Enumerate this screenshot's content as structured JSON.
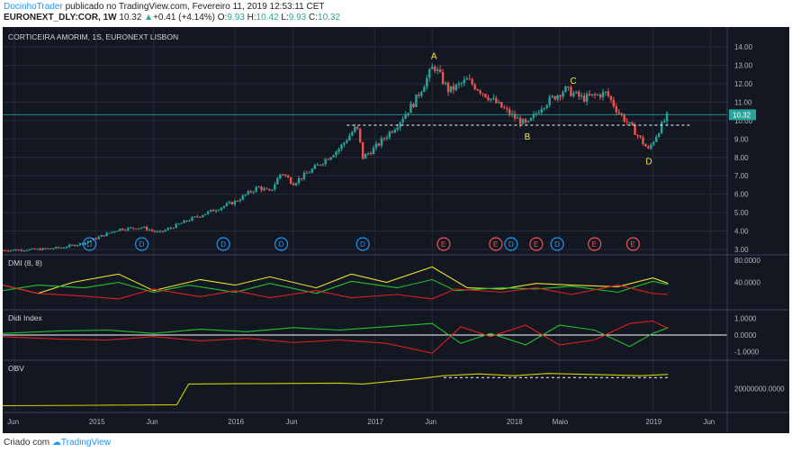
{
  "header": {
    "author": "DocinhoTrader",
    "published_text": "publicado no TradingView.com, Fevereiro 11, 2019 12:53:11 CET",
    "symbol": "EURONEXT_DLY:COR, 1W",
    "price": "10.32",
    "change": "+0.41 (+4.14%)",
    "o_label": "O:",
    "o_value": "9.93",
    "h_label": "H:",
    "h_value": "10.42",
    "l_label": "L:",
    "l_value": "9.93",
    "c_label": "C:",
    "c_value": "10.32"
  },
  "footer": {
    "created_with": "Criado com",
    "brand": "TradingView"
  },
  "colors": {
    "background": "#131722",
    "up": "#26a69a",
    "down": "#ef5350",
    "dividend": "#2196f3",
    "earnings": "#ef5350",
    "annotation": "#f5e642",
    "plus_di": "#22c22e",
    "minus_di": "#e01e1e",
    "adx": "#e8e32c",
    "obv": "#d4d000"
  },
  "chart_data": [
    {
      "type": "candlestick",
      "title": "CORTICEIRA AMORIM, 1S, EURONEXT LISBON",
      "ylim": [
        2.9,
        14.5
      ],
      "y_ticks": [
        "14.00",
        "13.00",
        "12.00",
        "11.00",
        "10.00",
        "9.00",
        "8.00",
        "7.00",
        "6.00",
        "5.00",
        "4.00",
        "3.00"
      ],
      "x_ticks": [
        {
          "date": "2014-06-01",
          "label": "Jun"
        },
        {
          "date": "2015-01-01",
          "label": "2015"
        },
        {
          "date": "2015-06-01",
          "label": "Jun"
        },
        {
          "date": "2016-01-01",
          "label": "2016"
        },
        {
          "date": "2016-06-01",
          "label": "Jun"
        },
        {
          "date": "2017-01-01",
          "label": "2017"
        },
        {
          "date": "2017-06-01",
          "label": "Jun"
        },
        {
          "date": "2018-01-01",
          "label": "2018"
        },
        {
          "date": "2018-05-01",
          "label": "Maio"
        },
        {
          "date": "2019-01-01",
          "label": "2019"
        },
        {
          "date": "2019-06-01",
          "label": "Jun"
        }
      ],
      "x_range": [
        "2014-05-01",
        "2019-07-15"
      ],
      "price_line": 10.32,
      "price_label": "10.32",
      "support_level": 9.75,
      "close_path": [
        [
          "2014-05-01",
          2.95
        ],
        [
          "2014-08-01",
          3.0
        ],
        [
          "2014-10-01",
          3.1
        ],
        [
          "2014-12-01",
          3.35
        ],
        [
          "2015-03-01",
          4.1
        ],
        [
          "2015-05-01",
          4.2
        ],
        [
          "2015-06-15",
          3.9
        ],
        [
          "2015-09-01",
          4.6
        ],
        [
          "2015-11-01",
          5.1
        ],
        [
          "2016-01-01",
          5.6
        ],
        [
          "2016-03-01",
          6.4
        ],
        [
          "2016-04-01",
          6.1
        ],
        [
          "2016-05-01",
          7.2
        ],
        [
          "2016-06-01",
          6.6
        ],
        [
          "2016-08-01",
          7.5
        ],
        [
          "2016-10-01",
          8.5
        ],
        [
          "2016-11-15",
          9.7
        ],
        [
          "2016-12-01",
          8.0
        ],
        [
          "2017-01-01",
          8.5
        ],
        [
          "2017-03-01",
          9.8
        ],
        [
          "2017-04-15",
          11.0
        ],
        [
          "2017-06-05",
          13.0
        ],
        [
          "2017-07-15",
          11.6
        ],
        [
          "2017-09-01",
          12.2
        ],
        [
          "2017-11-01",
          11.2
        ],
        [
          "2018-01-01",
          10.2
        ],
        [
          "2018-02-05",
          9.75
        ],
        [
          "2018-03-15",
          10.8
        ],
        [
          "2018-05-15",
          11.7
        ],
        [
          "2018-07-01",
          11.2
        ],
        [
          "2018-09-01",
          11.5
        ],
        [
          "2018-10-01",
          10.5
        ],
        [
          "2018-11-15",
          9.4
        ],
        [
          "2018-12-20",
          8.4
        ],
        [
          "2019-01-20",
          9.6
        ],
        [
          "2019-02-10",
          10.32
        ]
      ],
      "annotations": [
        {
          "label": "A",
          "date": "2017-06-05",
          "value": 13.0,
          "pos": "above"
        },
        {
          "label": "B",
          "date": "2018-02-05",
          "value": 9.75,
          "pos": "below"
        },
        {
          "label": "C",
          "date": "2018-06-05",
          "value": 11.65,
          "pos": "above"
        },
        {
          "label": "D",
          "date": "2018-12-20",
          "value": 8.4,
          "pos": "below"
        }
      ],
      "events": [
        {
          "type": "D",
          "date": "2014-12-15"
        },
        {
          "type": "D",
          "date": "2015-05-01"
        },
        {
          "type": "D",
          "date": "2015-12-01"
        },
        {
          "type": "D",
          "date": "2016-05-01"
        },
        {
          "type": "D",
          "date": "2016-12-01"
        },
        {
          "type": "E",
          "date": "2017-07-01"
        },
        {
          "type": "E",
          "date": "2017-11-15"
        },
        {
          "type": "D",
          "date": "2017-12-25"
        },
        {
          "type": "E",
          "date": "2018-03-01"
        },
        {
          "type": "D",
          "date": "2018-04-25"
        },
        {
          "type": "E",
          "date": "2018-08-01"
        },
        {
          "type": "E",
          "date": "2018-11-10"
        }
      ]
    },
    {
      "type": "line",
      "title": "DMI (8, 8)",
      "ylim": [
        0,
        80
      ],
      "y_ticks": [
        "80.0000",
        "40.0000"
      ],
      "series": [
        {
          "color": "#e8e32c",
          "points": [
            [
              "2014-05-01",
              35
            ],
            [
              "2014-08-01",
              20
            ],
            [
              "2014-11-01",
              40
            ],
            [
              "2015-03-01",
              55
            ],
            [
              "2015-06-01",
              25
            ],
            [
              "2015-10-01",
              45
            ],
            [
              "2016-01-01",
              35
            ],
            [
              "2016-04-01",
              50
            ],
            [
              "2016-08-01",
              30
            ],
            [
              "2016-11-01",
              55
            ],
            [
              "2017-02-01",
              40
            ],
            [
              "2017-06-01",
              68
            ],
            [
              "2017-09-01",
              30
            ],
            [
              "2017-12-01",
              28
            ],
            [
              "2018-03-01",
              38
            ],
            [
              "2018-06-01",
              35
            ],
            [
              "2018-10-01",
              32
            ],
            [
              "2019-01-01",
              48
            ],
            [
              "2019-02-10",
              38
            ]
          ]
        },
        {
          "color": "#22c22e",
          "points": [
            [
              "2014-05-01",
              25
            ],
            [
              "2014-08-01",
              35
            ],
            [
              "2014-12-01",
              30
            ],
            [
              "2015-03-01",
              40
            ],
            [
              "2015-06-01",
              22
            ],
            [
              "2015-09-01",
              35
            ],
            [
              "2016-01-01",
              22
            ],
            [
              "2016-04-01",
              38
            ],
            [
              "2016-08-01",
              20
            ],
            [
              "2016-11-01",
              42
            ],
            [
              "2017-03-01",
              30
            ],
            [
              "2017-06-01",
              45
            ],
            [
              "2017-08-01",
              25
            ],
            [
              "2017-12-01",
              30
            ],
            [
              "2018-03-01",
              28
            ],
            [
              "2018-06-01",
              33
            ],
            [
              "2018-10-01",
              22
            ],
            [
              "2019-01-01",
              42
            ],
            [
              "2019-02-10",
              36
            ]
          ]
        },
        {
          "color": "#e01e1e",
          "points": [
            [
              "2014-05-01",
              35
            ],
            [
              "2014-08-01",
              20
            ],
            [
              "2014-12-01",
              15
            ],
            [
              "2015-03-01",
              10
            ],
            [
              "2015-06-01",
              28
            ],
            [
              "2015-10-01",
              14
            ],
            [
              "2016-01-01",
              25
            ],
            [
              "2016-04-01",
              12
            ],
            [
              "2016-08-01",
              25
            ],
            [
              "2016-11-01",
              12
            ],
            [
              "2017-03-01",
              18
            ],
            [
              "2017-06-01",
              10
            ],
            [
              "2017-08-01",
              28
            ],
            [
              "2017-12-01",
              22
            ],
            [
              "2018-03-01",
              30
            ],
            [
              "2018-06-01",
              18
            ],
            [
              "2018-10-01",
              35
            ],
            [
              "2019-01-01",
              20
            ],
            [
              "2019-02-10",
              18
            ]
          ]
        }
      ]
    },
    {
      "type": "line",
      "title": "Didi Index",
      "ylim": [
        -1.2,
        1.2
      ],
      "y_ticks": [
        "1.0000",
        "0.0000",
        "-1.0000"
      ],
      "series": [
        {
          "color": "#22c22e",
          "points": [
            [
              "2014-05-01",
              0.1
            ],
            [
              "2014-10-01",
              0.25
            ],
            [
              "2015-02-01",
              0.3
            ],
            [
              "2015-06-01",
              0.1
            ],
            [
              "2015-10-01",
              0.35
            ],
            [
              "2016-02-01",
              0.2
            ],
            [
              "2016-06-01",
              0.45
            ],
            [
              "2016-10-01",
              0.3
            ],
            [
              "2017-02-01",
              0.5
            ],
            [
              "2017-06-01",
              0.7
            ],
            [
              "2017-08-15",
              -0.5
            ],
            [
              "2017-11-01",
              0.1
            ],
            [
              "2018-02-01",
              -0.6
            ],
            [
              "2018-05-01",
              0.6
            ],
            [
              "2018-08-01",
              0.3
            ],
            [
              "2018-11-01",
              -0.7
            ],
            [
              "2019-01-01",
              0.1
            ],
            [
              "2019-02-10",
              0.45
            ]
          ]
        },
        {
          "color": "#e01e1e",
          "points": [
            [
              "2014-05-01",
              -0.1
            ],
            [
              "2014-10-01",
              -0.25
            ],
            [
              "2015-02-01",
              -0.3
            ],
            [
              "2015-06-01",
              -0.1
            ],
            [
              "2015-10-01",
              -0.35
            ],
            [
              "2016-02-01",
              -0.2
            ],
            [
              "2016-06-01",
              -0.45
            ],
            [
              "2016-10-01",
              -0.3
            ],
            [
              "2017-02-01",
              -0.5
            ],
            [
              "2017-06-01",
              -1.1
            ],
            [
              "2017-08-15",
              0.5
            ],
            [
              "2017-11-01",
              -0.1
            ],
            [
              "2018-02-01",
              0.6
            ],
            [
              "2018-05-01",
              -0.6
            ],
            [
              "2018-08-01",
              -0.3
            ],
            [
              "2018-11-01",
              0.7
            ],
            [
              "2019-01-01",
              0.85
            ],
            [
              "2019-02-10",
              0.4
            ]
          ]
        }
      ]
    },
    {
      "type": "line",
      "title": "OBV",
      "ylim": [
        0,
        45000000
      ],
      "y_ticks": [
        "20000000.0000"
      ],
      "y_tick_values": [
        20000000
      ],
      "series": [
        {
          "color": "#d4d000",
          "points": [
            [
              "2014-05-01",
              1500000
            ],
            [
              "2015-01-01",
              2000000
            ],
            [
              "2015-08-01",
              2500000
            ],
            [
              "2015-09-01",
              25000000
            ],
            [
              "2016-03-01",
              25500000
            ],
            [
              "2016-10-01",
              26000000
            ],
            [
              "2016-12-01",
              25000000
            ],
            [
              "2017-02-01",
              27500000
            ],
            [
              "2017-05-01",
              31000000
            ],
            [
              "2017-07-01",
              34000000
            ],
            [
              "2017-10-01",
              36000000
            ],
            [
              "2018-01-01",
              34000000
            ],
            [
              "2018-04-01",
              36500000
            ],
            [
              "2018-09-01",
              35000000
            ],
            [
              "2018-12-01",
              34000000
            ],
            [
              "2019-02-10",
              35500000
            ]
          ]
        }
      ],
      "support_level": 32000000,
      "support_range": [
        "2017-07-01",
        "2019-02-10"
      ]
    }
  ]
}
